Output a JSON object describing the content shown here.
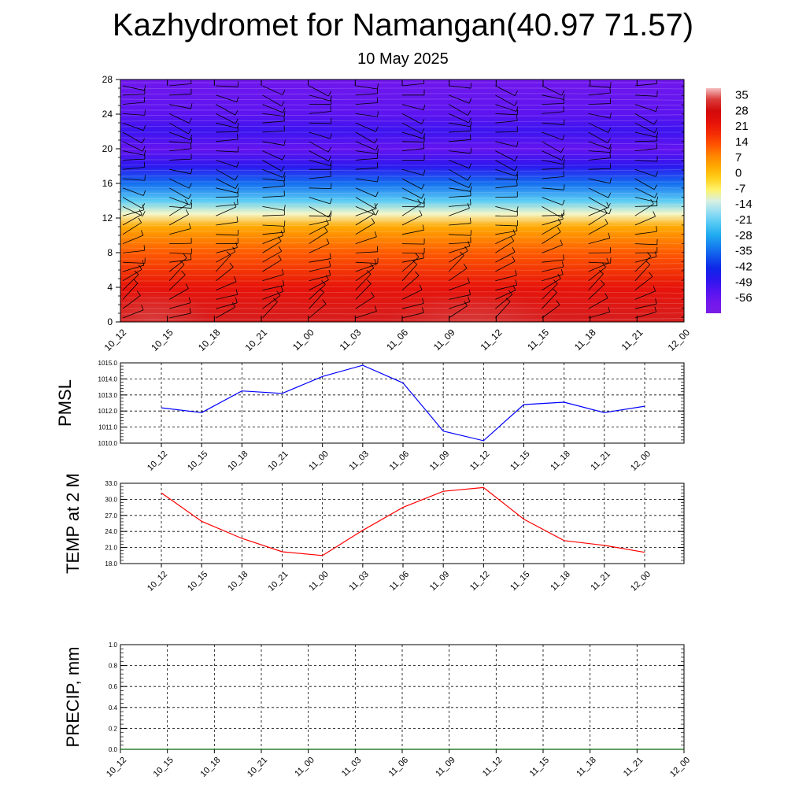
{
  "title": "Kazhydromet for Namangan(40.97 71.57)",
  "subtitle": "10 May 2025",
  "chart_data": [
    {
      "type": "heatmap",
      "title": "",
      "xlabel": "",
      "ylabel": "",
      "x": [
        "10_12",
        "10_15",
        "10_18",
        "10_21",
        "11_00",
        "11_03",
        "11_06",
        "11_09",
        "11_12",
        "11_15",
        "11_18",
        "11_21",
        "12_00"
      ],
      "y_ticks": [
        0,
        4,
        8,
        12,
        16,
        20,
        24,
        28
      ],
      "ylim": [
        0,
        28
      ],
      "colorbar": {
        "labels": [
          35,
          28,
          21,
          14,
          7,
          0,
          -7,
          -14,
          -21,
          -28,
          -35,
          -42,
          -49,
          -56
        ],
        "range": [
          -63,
          38
        ]
      },
      "profile": [
        {
          "level": 0,
          "value": 30
        },
        {
          "level": 4,
          "value": 22
        },
        {
          "level": 8,
          "value": 12
        },
        {
          "level": 11,
          "value": 3
        },
        {
          "level": 12.5,
          "value": -10
        },
        {
          "level": 14,
          "value": -22
        },
        {
          "level": 16,
          "value": -35
        },
        {
          "level": 18,
          "value": -48
        },
        {
          "level": 20,
          "value": -55
        },
        {
          "level": 22,
          "value": -50
        },
        {
          "level": 24,
          "value": -54
        },
        {
          "level": 28,
          "value": -58
        }
      ],
      "wind_barbs": "overlay"
    },
    {
      "type": "line",
      "ylabel": "PMSL",
      "ylim": [
        1010.0,
        1015.0
      ],
      "y_ticks": [
        "1010.0",
        "1011.0",
        "1012.0",
        "1013.0",
        "1014.0",
        "1015.0"
      ],
      "x": [
        "10_12",
        "10_15",
        "10_18",
        "10_21",
        "11_00",
        "11_03",
        "11_06",
        "11_09",
        "11_12",
        "11_15",
        "11_18",
        "11_21",
        "12_00"
      ],
      "series": [
        {
          "values": [
            1012.2,
            1011.9,
            1013.25,
            1013.1,
            1014.15,
            1014.85,
            1013.75,
            1010.75,
            1010.15,
            1012.4,
            1012.55,
            1011.9,
            1012.3
          ],
          "color": "#0000ff"
        }
      ]
    },
    {
      "type": "line",
      "ylabel": "TEMP at 2 M",
      "ylim": [
        18.0,
        33.0
      ],
      "y_ticks": [
        "18.0",
        "21.0",
        "24.0",
        "27.0",
        "30.0",
        "33.0"
      ],
      "x": [
        "10_12",
        "10_15",
        "10_18",
        "10_21",
        "11_00",
        "11_03",
        "11_06",
        "11_09",
        "11_12",
        "11_15",
        "11_18",
        "11_21",
        "12_00"
      ],
      "series": [
        {
          "values": [
            31.2,
            25.9,
            22.7,
            20.2,
            19.5,
            24.2,
            28.5,
            31.5,
            32.2,
            26.3,
            22.3,
            21.4,
            20.1
          ],
          "color": "#ff0000"
        }
      ]
    },
    {
      "type": "line",
      "ylabel": "PRECIP, mm",
      "ylim": [
        0.0,
        1.0
      ],
      "y_ticks": [
        "0.0",
        "0.2",
        "0.4",
        "0.6",
        "0.8",
        "1.0"
      ],
      "x": [
        "10_12",
        "10_15",
        "10_18",
        "10_21",
        "11_00",
        "11_03",
        "11_06",
        "11_09",
        "11_12",
        "11_15",
        "11_18",
        "11_21",
        "12_00"
      ],
      "series": [
        {
          "values": [
            0,
            0,
            0,
            0,
            0,
            0,
            0,
            0,
            0,
            0,
            0,
            0,
            0
          ],
          "color": "#006400"
        }
      ]
    }
  ]
}
